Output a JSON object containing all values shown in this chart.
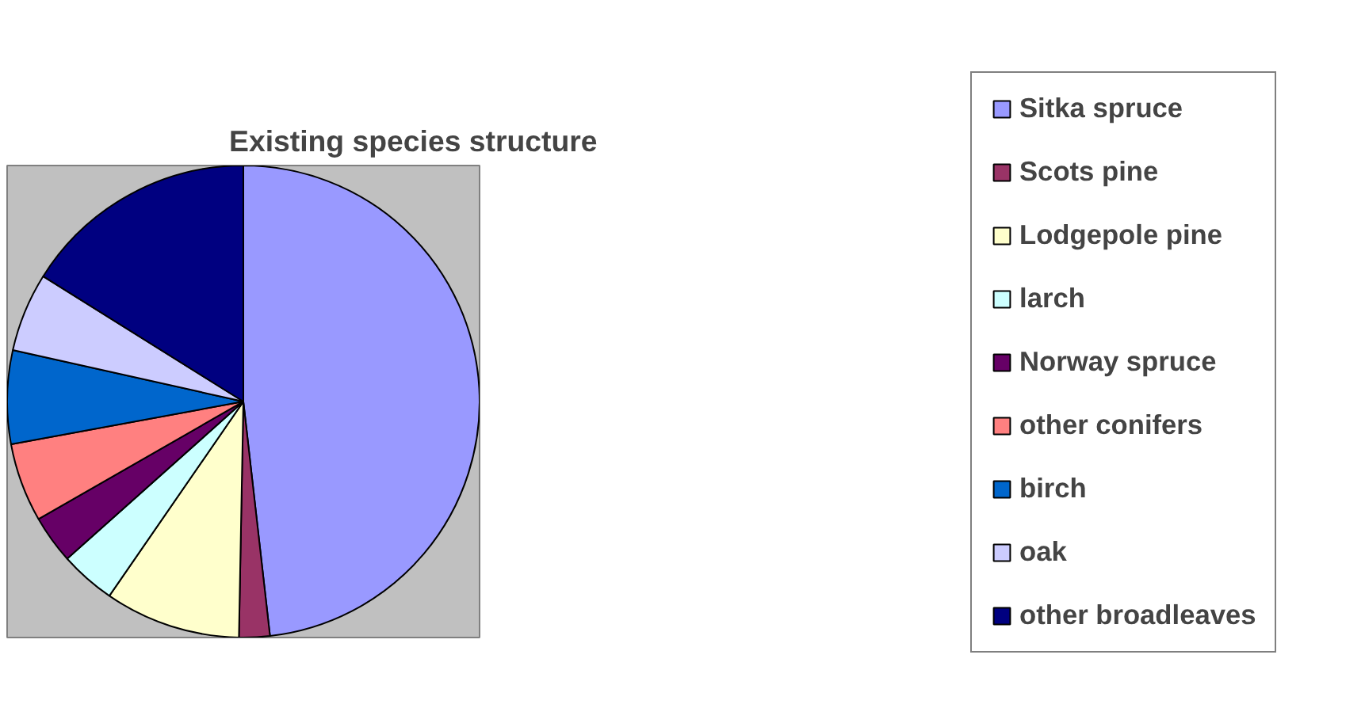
{
  "chart_data": {
    "type": "pie",
    "title": "Existing species structure",
    "categories": [
      "Sitka spruce",
      "Scots pine",
      "Lodgepole pine",
      "larch",
      "Norway spruce",
      "other conifers",
      "birch",
      "oak",
      "other broadleaves"
    ],
    "values": [
      48.2,
      2.1,
      9.3,
      3.8,
      3.3,
      5.4,
      6.4,
      5.4,
      16.1
    ],
    "colors": [
      "#9999ff",
      "#993366",
      "#ffffcc",
      "#ccffff",
      "#660066",
      "#ff8080",
      "#0066cc",
      "#ccccff",
      "#000080"
    ],
    "legend": "right"
  }
}
